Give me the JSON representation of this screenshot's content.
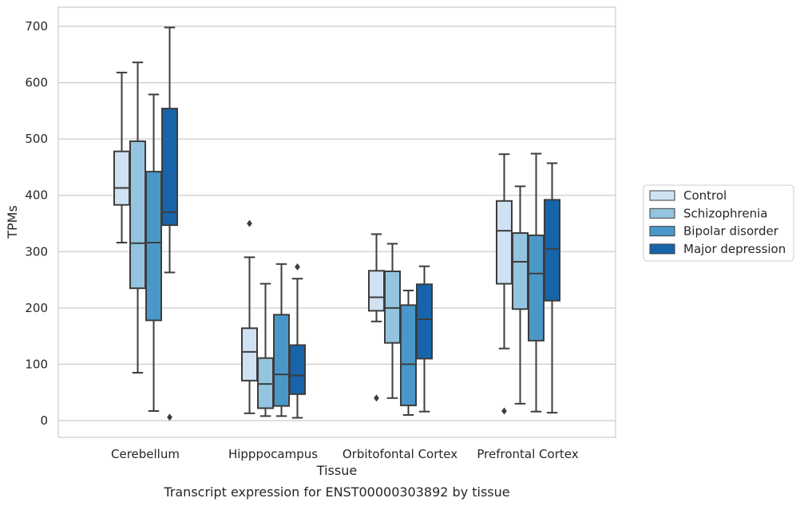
{
  "chart_data": {
    "type": "box",
    "xlabel": "Tissue",
    "ylabel": "TPMs",
    "caption": "Transcript expression for ENST00000303892 by tissue",
    "ylim": [
      -30,
      735
    ],
    "yticks": [
      0,
      100,
      200,
      300,
      400,
      500,
      600,
      700
    ],
    "grid": "horizontal",
    "legend_position": "right",
    "categories": [
      "Cerebellum",
      "Hipppocampus",
      "Orbitofontal Cortex",
      "Prefrontal Cortex"
    ],
    "series": [
      {
        "name": "Control",
        "color": "#d0e1f2",
        "boxes": [
          {
            "whisker_low": 316,
            "q1": 383,
            "median": 413,
            "q3": 478,
            "whisker_high": 618,
            "outliers": []
          },
          {
            "whisker_low": 13,
            "q1": 71,
            "median": 122,
            "q3": 164,
            "whisker_high": 290,
            "outliers": [
              350
            ]
          },
          {
            "whisker_low": 176,
            "q1": 195,
            "median": 219,
            "q3": 266,
            "whisker_high": 331,
            "outliers": [
              40
            ]
          },
          {
            "whisker_low": 128,
            "q1": 243,
            "median": 337,
            "q3": 390,
            "whisker_high": 473,
            "outliers": [
              17
            ]
          }
        ]
      },
      {
        "name": "Schizophrenia",
        "color": "#94c4df",
        "boxes": [
          {
            "whisker_low": 85,
            "q1": 235,
            "median": 315,
            "q3": 496,
            "whisker_high": 636,
            "outliers": []
          },
          {
            "whisker_low": 8,
            "q1": 22,
            "median": 65,
            "q3": 111,
            "whisker_high": 243,
            "outliers": []
          },
          {
            "whisker_low": 40,
            "q1": 138,
            "median": 200,
            "q3": 265,
            "whisker_high": 314,
            "outliers": []
          },
          {
            "whisker_low": 30,
            "q1": 198,
            "median": 282,
            "q3": 333,
            "whisker_high": 416,
            "outliers": []
          }
        ]
      },
      {
        "name": "Bipolar disorder",
        "color": "#4a98c9",
        "boxes": [
          {
            "whisker_low": 17,
            "q1": 178,
            "median": 316,
            "q3": 442,
            "whisker_high": 579,
            "outliers": []
          },
          {
            "whisker_low": 8,
            "q1": 26,
            "median": 82,
            "q3": 188,
            "whisker_high": 278,
            "outliers": []
          },
          {
            "whisker_low": 10,
            "q1": 27,
            "median": 100,
            "q3": 205,
            "whisker_high": 231,
            "outliers": []
          },
          {
            "whisker_low": 16,
            "q1": 142,
            "median": 261,
            "q3": 329,
            "whisker_high": 474,
            "outliers": []
          }
        ]
      },
      {
        "name": "Major depression",
        "color": "#1764ab",
        "boxes": [
          {
            "whisker_low": 263,
            "q1": 347,
            "median": 370,
            "q3": 554,
            "whisker_high": 698,
            "outliers": [
              6
            ]
          },
          {
            "whisker_low": 5,
            "q1": 47,
            "median": 80,
            "q3": 134,
            "whisker_high": 252,
            "outliers": [
              273
            ]
          },
          {
            "whisker_low": 16,
            "q1": 110,
            "median": 180,
            "q3": 242,
            "whisker_high": 274,
            "outliers": []
          },
          {
            "whisker_low": 14,
            "q1": 213,
            "median": 305,
            "q3": 392,
            "whisker_high": 457,
            "outliers": []
          }
        ]
      }
    ]
  }
}
